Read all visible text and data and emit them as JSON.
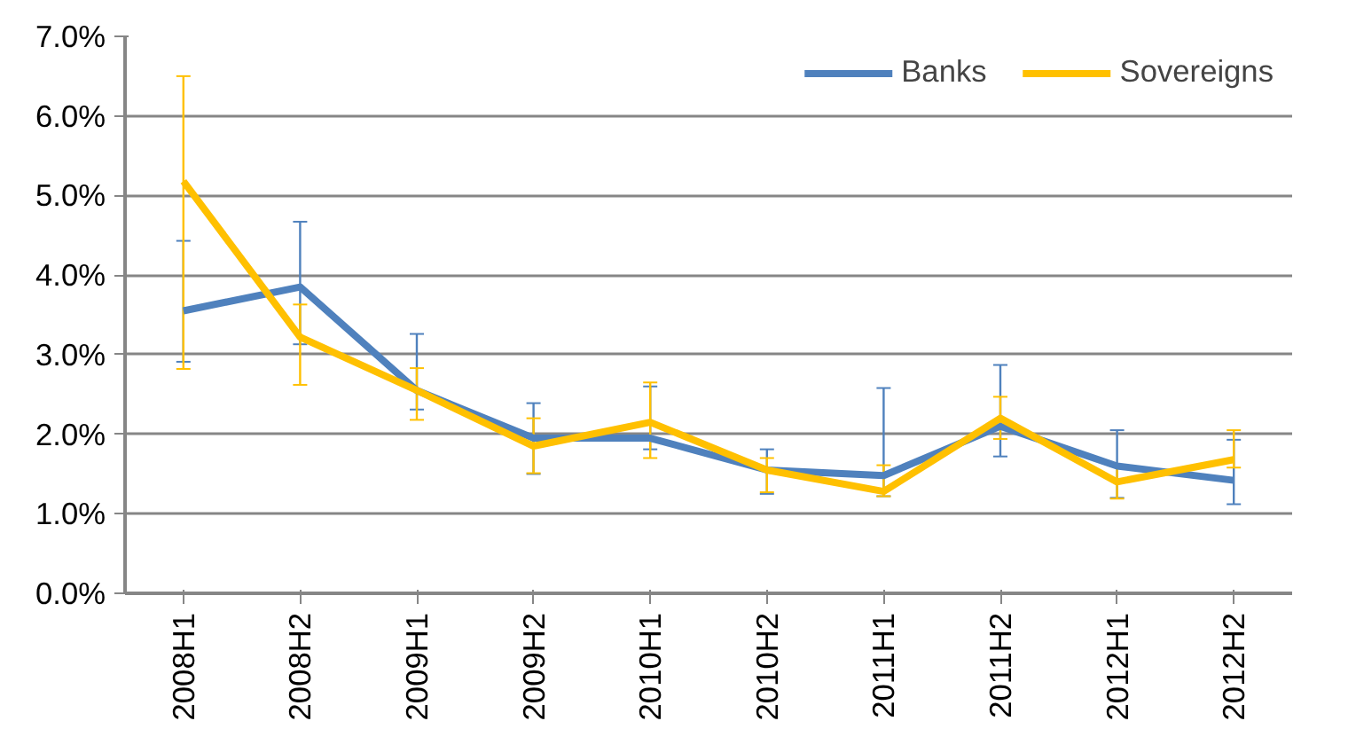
{
  "chart_data": {
    "type": "line",
    "categories": [
      "2008H1",
      "2008H2",
      "2009H1",
      "2009H2",
      "2010H1",
      "2010H2",
      "2011H1",
      "2011H2",
      "2012H1",
      "2012H2"
    ],
    "series": [
      {
        "name": "Banks",
        "color": "#4f81bd",
        "values": [
          3.55,
          3.85,
          2.55,
          1.95,
          1.95,
          1.55,
          1.48,
          2.1,
          1.6,
          1.42
        ],
        "errors": [
          [
            2.91,
            4.43
          ],
          [
            3.13,
            4.67
          ],
          [
            2.31,
            3.26
          ],
          [
            1.5,
            2.39
          ],
          [
            1.81,
            2.6
          ],
          [
            1.25,
            1.81
          ],
          [
            1.22,
            2.58
          ],
          [
            1.72,
            2.87
          ],
          [
            1.2,
            2.05
          ],
          [
            1.12,
            1.93
          ]
        ]
      },
      {
        "name": "Sovereigns",
        "color": "#ffc000",
        "values": [
          5.18,
          3.22,
          2.55,
          1.85,
          2.15,
          1.55,
          1.28,
          2.2,
          1.4,
          1.68
        ],
        "errors": [
          [
            2.82,
            6.5
          ],
          [
            2.62,
            3.63
          ],
          [
            2.18,
            2.83
          ],
          [
            1.51,
            2.2
          ],
          [
            1.7,
            2.65
          ],
          [
            1.27,
            1.7
          ],
          [
            1.22,
            1.61
          ],
          [
            1.94,
            2.47
          ],
          [
            1.19,
            1.6
          ],
          [
            1.58,
            2.05
          ]
        ]
      }
    ],
    "ylim": [
      0,
      7
    ],
    "yticks": [
      {
        "value": 0,
        "label": "0.0%"
      },
      {
        "value": 1,
        "label": "1.0%"
      },
      {
        "value": 2,
        "label": "2.0%"
      },
      {
        "value": 3,
        "label": "3.0%"
      },
      {
        "value": 4,
        "label": "4.0%"
      },
      {
        "value": 5,
        "label": "5.0%"
      },
      {
        "value": 6,
        "label": "6.0%"
      },
      {
        "value": 7,
        "label": "7.0%"
      }
    ],
    "grid": "y",
    "legend": "top right",
    "marker": "none",
    "line_style": "solid"
  }
}
